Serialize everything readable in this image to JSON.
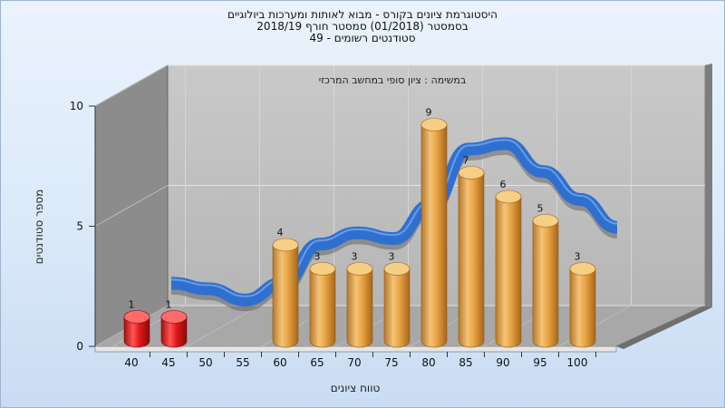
{
  "chart_data": {
    "type": "bar",
    "title_lines": [
      "היסטוגרמת ציונים בקורס - מבוא לאותות ומערכות ביולוגיים",
      "בסמסטר  (01/2018)  סמסטר חורף 2018/19",
      "סטודנטים רשומים - 49"
    ],
    "subtitle": "במשימה : ציון סופי במחשב המרכזי",
    "xlabel": "טווח ציונים",
    "ylabel": "מספר סטודנטים",
    "ylim": [
      0,
      10
    ],
    "y_ticks": [
      "0",
      "5",
      "10"
    ],
    "categories": [
      "40",
      "45",
      "50",
      "55",
      "60",
      "65",
      "70",
      "75",
      "80",
      "85",
      "90",
      "95",
      "100"
    ],
    "values": [
      1,
      1,
      0,
      0,
      4,
      3,
      3,
      3,
      9,
      7,
      6,
      5,
      3
    ],
    "bar_colors": [
      "#e01818",
      "#e01818",
      "#e8a445",
      "#e8a445",
      "#e8a445",
      "#e8a445",
      "#e8a445",
      "#e8a445",
      "#e8a445",
      "#e8a445",
      "#e8a445",
      "#e8a445",
      "#e8a445"
    ],
    "curve_color": "#2f6fd0",
    "grid": true,
    "legend": "none"
  }
}
